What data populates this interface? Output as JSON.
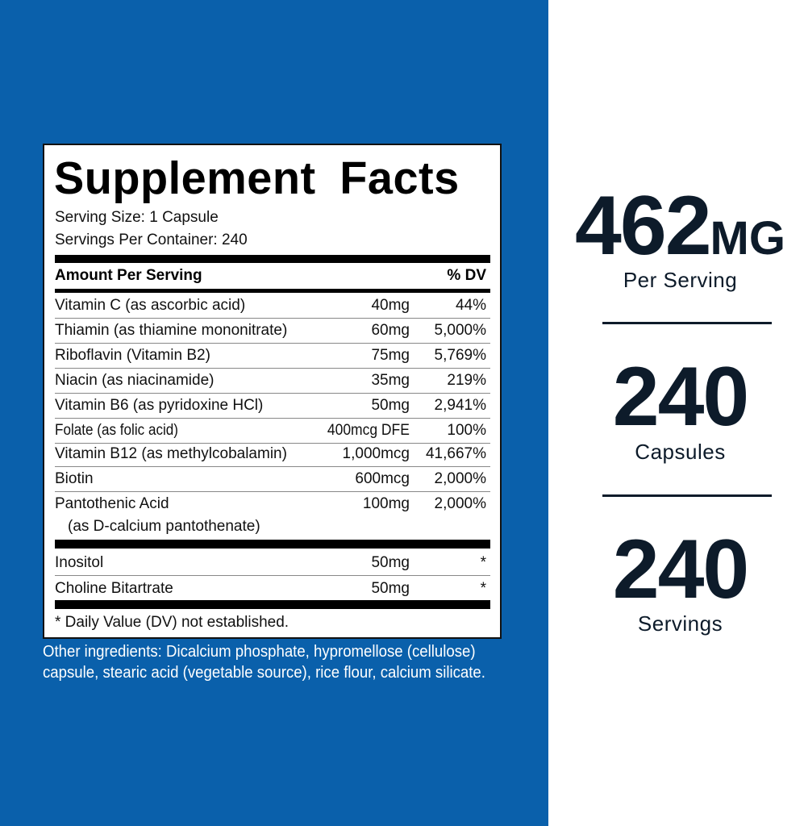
{
  "label": {
    "title": "Supplement Facts",
    "serving_size": "Serving Size: 1 Capsule",
    "servings_per_container": "Servings Per Container: 240",
    "header_amount": "Amount Per Serving",
    "header_dv": "% DV",
    "vitamins": [
      {
        "name": "Vitamin C (as ascorbic acid)",
        "amount": "40mg",
        "dv": "44%"
      },
      {
        "name": "Thiamin (as thiamine mononitrate)",
        "amount": "60mg",
        "dv": "5,000%"
      },
      {
        "name": "Riboflavin (Vitamin B2)",
        "amount": "75mg",
        "dv": "5,769%"
      },
      {
        "name": "Niacin (as niacinamide)",
        "amount": "35mg",
        "dv": "219%"
      },
      {
        "name": "Vitamin B6 (as pyridoxine HCl)",
        "amount": "50mg",
        "dv": "2,941%"
      },
      {
        "name": "Folate (as folic acid)",
        "amount": "400mcg DFE",
        "dv": "100%"
      },
      {
        "name": "Vitamin B12 (as methylcobalamin)",
        "amount": "1,000mcg",
        "dv": "41,667%"
      },
      {
        "name": "Biotin",
        "amount": "600mcg",
        "dv": "2,000%"
      },
      {
        "name": "Pantothenic Acid",
        "sub": "(as D-calcium pantothenate)",
        "amount": "100mg",
        "dv": "2,000%"
      }
    ],
    "others": [
      {
        "name": "Inositol",
        "amount": "50mg",
        "dv": "*"
      },
      {
        "name": "Choline Bitartrate",
        "amount": "50mg",
        "dv": "*"
      }
    ],
    "footnote": "* Daily Value (DV) not established."
  },
  "other_ingredients": "Other ingredients: Dicalcium phosphate, hypromellose (cellulose) capsule, stearic acid (vegetable source), rice flour, calcium silicate.",
  "stats": [
    {
      "value": "462",
      "unit": "MG",
      "caption": "Per Serving"
    },
    {
      "value": "240",
      "caption": "Capsules"
    },
    {
      "value": "240",
      "caption": "Servings"
    }
  ],
  "colors": {
    "background_blue": "#0a60ab",
    "stat_text": "#0d1b2a"
  }
}
